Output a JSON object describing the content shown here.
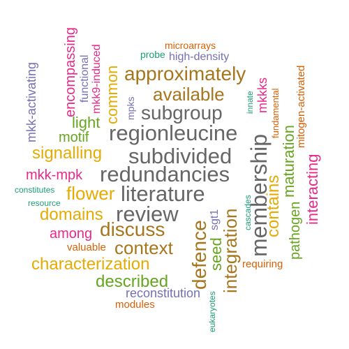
{
  "colors": {
    "green": "#1b9e77",
    "orange": "#d95f02",
    "purple": "#7570b3",
    "magenta": "#e7298a",
    "lime": "#66a61e",
    "gold": "#e6ab02",
    "brown": "#a6761d",
    "gray": "#666666"
  },
  "words": [
    "microarrays",
    "probe",
    "high-density",
    "mkk-activating",
    "encompassing",
    "functional",
    "mkk9-induced",
    "common",
    "approximately",
    "mpks",
    "innate",
    "mkkks",
    "fundamental",
    "mitogen-activated",
    "available",
    "subgroup",
    "light",
    "motif",
    "regionleucine",
    "membership",
    "maturation",
    "signalling",
    "subdivided",
    "interacting",
    "mkk-mpk",
    "redundancies",
    "flower",
    "constitutes",
    "resource",
    "literature",
    "cascades",
    "contains",
    "domains",
    "review",
    "sgt1",
    "pathogen",
    "among",
    "discuss",
    "defence",
    "seed",
    "integration",
    "context",
    "valuable",
    "characterization",
    "requiring",
    "described",
    "reconstitution",
    "eukaryotes",
    "modules"
  ]
}
